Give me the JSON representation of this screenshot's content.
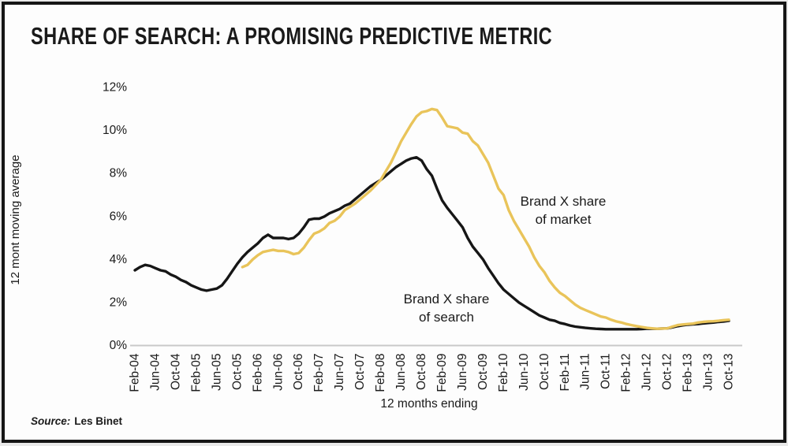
{
  "header": {
    "title": "SHARE OF SEARCH: A PROMISING PREDICTIVE METRIC"
  },
  "footer": {
    "source_label": "Source:",
    "source_value": "Les Binet"
  },
  "chart_data": {
    "type": "line",
    "title": "SHARE OF SEARCH: A PROMISING PREDICTIVE METRIC",
    "xlabel": "12 months ending",
    "ylabel": "12 mont moving average",
    "ylim": [
      0,
      12
    ],
    "ytick_step": 2,
    "y_tick_labels": [
      "0%",
      "2%",
      "4%",
      "6%",
      "8%",
      "10%",
      "12%"
    ],
    "x_tick_labels": [
      "Feb-04",
      "Jun-04",
      "Oct-04",
      "Feb-05",
      "Jun-05",
      "Oct-05",
      "Feb-06",
      "Jun-06",
      "Oct-06",
      "Feb-07",
      "Jun-07",
      "Oct-07",
      "Feb-08",
      "Jun-08",
      "Oct-08",
      "Feb-09",
      "Jun-09",
      "Oct-09",
      "Feb-10",
      "Jun-10",
      "Oct-10",
      "Feb-11",
      "Jun-11",
      "Oct-11",
      "Feb-12",
      "Jun-12",
      "Oct-12",
      "Feb-13",
      "Jun-13",
      "Oct-13"
    ],
    "x_tick_every_n_points": 4,
    "grid": false,
    "legend_position": "inline-annotations",
    "axis_color": "#c9c9c9",
    "series": [
      {
        "name": "Brand X share of search",
        "color": "#161616",
        "values": [
          3.5,
          3.65,
          3.75,
          3.7,
          3.6,
          3.5,
          3.45,
          3.3,
          3.2,
          3.05,
          2.95,
          2.8,
          2.7,
          2.6,
          2.55,
          2.6,
          2.65,
          2.8,
          3.1,
          3.45,
          3.8,
          4.1,
          4.35,
          4.55,
          4.75,
          5.0,
          5.15,
          5.0,
          5.0,
          5.0,
          4.95,
          5.0,
          5.2,
          5.5,
          5.85,
          5.9,
          5.9,
          6.0,
          6.15,
          6.25,
          6.35,
          6.5,
          6.6,
          6.8,
          7.0,
          7.2,
          7.4,
          7.55,
          7.7,
          7.9,
          8.1,
          8.3,
          8.45,
          8.6,
          8.7,
          8.75,
          8.6,
          8.2,
          7.9,
          7.3,
          6.75,
          6.4,
          6.1,
          5.8,
          5.5,
          5.0,
          4.6,
          4.3,
          4.0,
          3.6,
          3.25,
          2.9,
          2.6,
          2.4,
          2.2,
          2.0,
          1.85,
          1.7,
          1.55,
          1.4,
          1.3,
          1.2,
          1.15,
          1.05,
          1.0,
          0.93,
          0.88,
          0.85,
          0.82,
          0.8,
          0.78,
          0.77,
          0.76,
          0.76,
          0.76,
          0.76,
          0.76,
          0.76,
          0.76,
          0.77,
          0.78,
          0.78,
          0.78,
          0.79,
          0.8,
          0.85,
          0.9,
          0.94,
          0.97,
          0.99,
          1.0,
          1.03,
          1.05,
          1.07,
          1.1,
          1.12,
          1.15
        ]
      },
      {
        "name": "Brand X share of market",
        "color": "#E9C45A",
        "values": [
          null,
          null,
          null,
          null,
          null,
          null,
          null,
          null,
          null,
          null,
          null,
          null,
          null,
          null,
          null,
          null,
          null,
          null,
          null,
          null,
          null,
          3.65,
          3.75,
          4.0,
          4.2,
          4.35,
          4.4,
          4.45,
          4.4,
          4.4,
          4.35,
          4.25,
          4.3,
          4.55,
          4.9,
          5.2,
          5.3,
          5.45,
          5.7,
          5.8,
          6.0,
          6.3,
          6.45,
          6.6,
          6.8,
          7.0,
          7.2,
          7.45,
          7.7,
          8.1,
          8.5,
          9.0,
          9.5,
          9.9,
          10.3,
          10.65,
          10.85,
          10.9,
          11.0,
          10.95,
          10.6,
          10.2,
          10.15,
          10.1,
          9.9,
          9.85,
          9.5,
          9.3,
          8.9,
          8.5,
          7.9,
          7.3,
          7.0,
          6.3,
          5.8,
          5.4,
          5.0,
          4.6,
          4.1,
          3.7,
          3.4,
          3.0,
          2.7,
          2.45,
          2.3,
          2.1,
          1.9,
          1.75,
          1.65,
          1.55,
          1.45,
          1.35,
          1.3,
          1.2,
          1.12,
          1.07,
          1.0,
          0.95,
          0.9,
          0.86,
          0.82,
          0.8,
          0.78,
          0.79,
          0.8,
          0.88,
          0.95,
          0.98,
          1.0,
          1.02,
          1.07,
          1.1,
          1.12,
          1.13,
          1.15,
          1.18,
          1.2
        ]
      }
    ],
    "annotations": [
      {
        "id": "market",
        "line1": "Brand X share",
        "line2": "of market"
      },
      {
        "id": "search",
        "line1": "Brand X share",
        "line2": "of search"
      }
    ]
  }
}
